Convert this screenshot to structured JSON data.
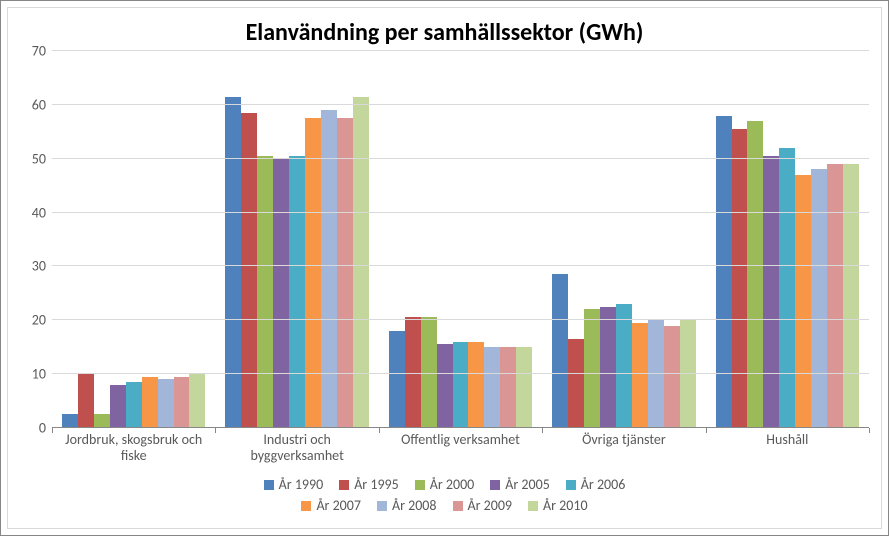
{
  "chart": {
    "type": "bar",
    "title": "Elanvändning per samhällssektor (GWh)",
    "title_fontsize": 24,
    "title_fontweight": "bold",
    "background_color": "#ffffff",
    "outer_border_color": "#868686",
    "inner_border_color": "#d9d9d9",
    "grid_color": "#d9d9d9",
    "axis_line_color": "#878787",
    "label_color": "#595959",
    "label_fontsize": 14,
    "ylim": [
      0,
      70
    ],
    "ytick_step": 10,
    "yticks": [
      0,
      10,
      20,
      30,
      40,
      50,
      60,
      70
    ],
    "categories": [
      "Jordbruk, skogsbruk och fiske",
      "Industri och byggverksamhet",
      "Offentlig verksamhet",
      "Övriga tjänster",
      "Hushåll"
    ],
    "series": [
      {
        "label": "År 1990",
        "color": "#4f81bd"
      },
      {
        "label": "År 1995",
        "color": "#c0504d"
      },
      {
        "label": "År 2000",
        "color": "#9bbb59"
      },
      {
        "label": "År 2005",
        "color": "#8064a2"
      },
      {
        "label": "År 2006",
        "color": "#4bacc6"
      },
      {
        "label": "År 2007",
        "color": "#f79646"
      },
      {
        "label": "År 2008",
        "color": "#a2b6da"
      },
      {
        "label": "År 2009",
        "color": "#d99694"
      },
      {
        "label": "År 2010",
        "color": "#c3d69b"
      }
    ],
    "values": [
      [
        2.5,
        10.0,
        2.5,
        8.0,
        8.5,
        9.5,
        9.0,
        9.5,
        10.0
      ],
      [
        61.5,
        58.5,
        50.5,
        50.0,
        50.5,
        57.5,
        59.0,
        57.5,
        61.5
      ],
      [
        18.0,
        20.5,
        20.5,
        15.5,
        16.0,
        16.0,
        15.0,
        15.0,
        15.0
      ],
      [
        28.5,
        16.5,
        22.0,
        22.5,
        23.0,
        19.5,
        20.0,
        19.0,
        20.0
      ],
      [
        58.0,
        55.5,
        57.0,
        50.5,
        52.0,
        47.0,
        48.0,
        49.0,
        49.0
      ]
    ],
    "legend_rows": [
      [
        0,
        1,
        2,
        3,
        4
      ],
      [
        5,
        6,
        7,
        8
      ]
    ]
  }
}
